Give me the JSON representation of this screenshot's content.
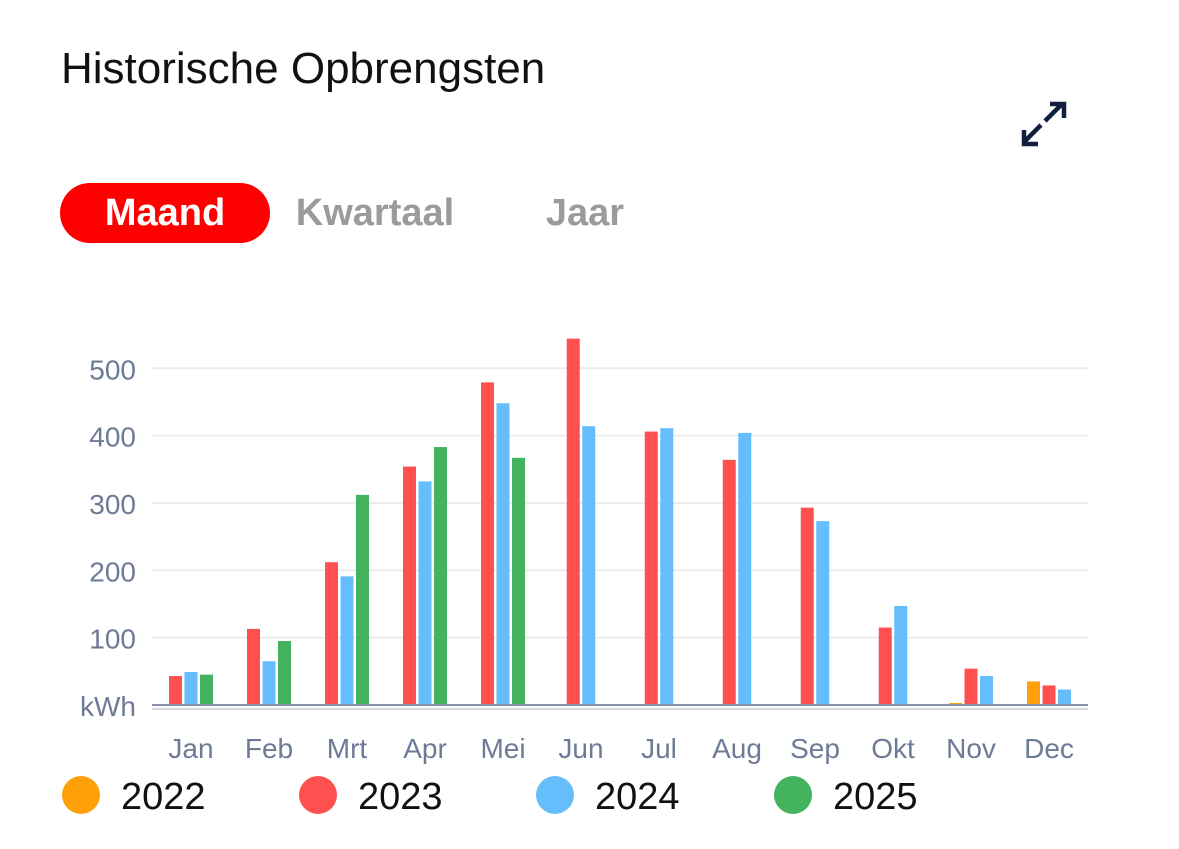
{
  "header": {
    "title": "Historische Opbrengsten",
    "expand_icon": "expand-arrows-icon"
  },
  "tabs": [
    {
      "label": "Maand",
      "active": true
    },
    {
      "label": "Kwartaal",
      "active": false
    },
    {
      "label": "Jaar",
      "active": false
    }
  ],
  "colors": {
    "accent": "#ff0000",
    "2022": "#ff9f0a",
    "2023": "#ff5050",
    "2024": "#66bdfb",
    "2025": "#43b35d"
  },
  "chart_data": {
    "type": "bar",
    "ylabel": "kWh",
    "ylim": [
      0,
      550
    ],
    "yticks": [
      100,
      200,
      300,
      400,
      500
    ],
    "grid": true,
    "legend": "bottom",
    "categories": [
      "Jan",
      "Feb",
      "Mrt",
      "Apr",
      "Mei",
      "Jun",
      "Jul",
      "Aug",
      "Sep",
      "Okt",
      "Nov",
      "Dec"
    ],
    "series": [
      {
        "name": "2022",
        "color": "#ff9f0a",
        "values": [
          null,
          null,
          null,
          null,
          null,
          null,
          null,
          null,
          null,
          null,
          3,
          35
        ]
      },
      {
        "name": "2023",
        "color": "#ff5050",
        "values": [
          43,
          113,
          212,
          354,
          479,
          544,
          406,
          364,
          293,
          115,
          54,
          29
        ]
      },
      {
        "name": "2024",
        "color": "#66bdfb",
        "values": [
          49,
          65,
          191,
          332,
          448,
          414,
          411,
          404,
          273,
          147,
          43,
          23
        ]
      },
      {
        "name": "2025",
        "color": "#43b35d",
        "values": [
          45,
          95,
          312,
          383,
          367,
          null,
          null,
          null,
          null,
          null,
          null,
          null
        ]
      }
    ]
  }
}
